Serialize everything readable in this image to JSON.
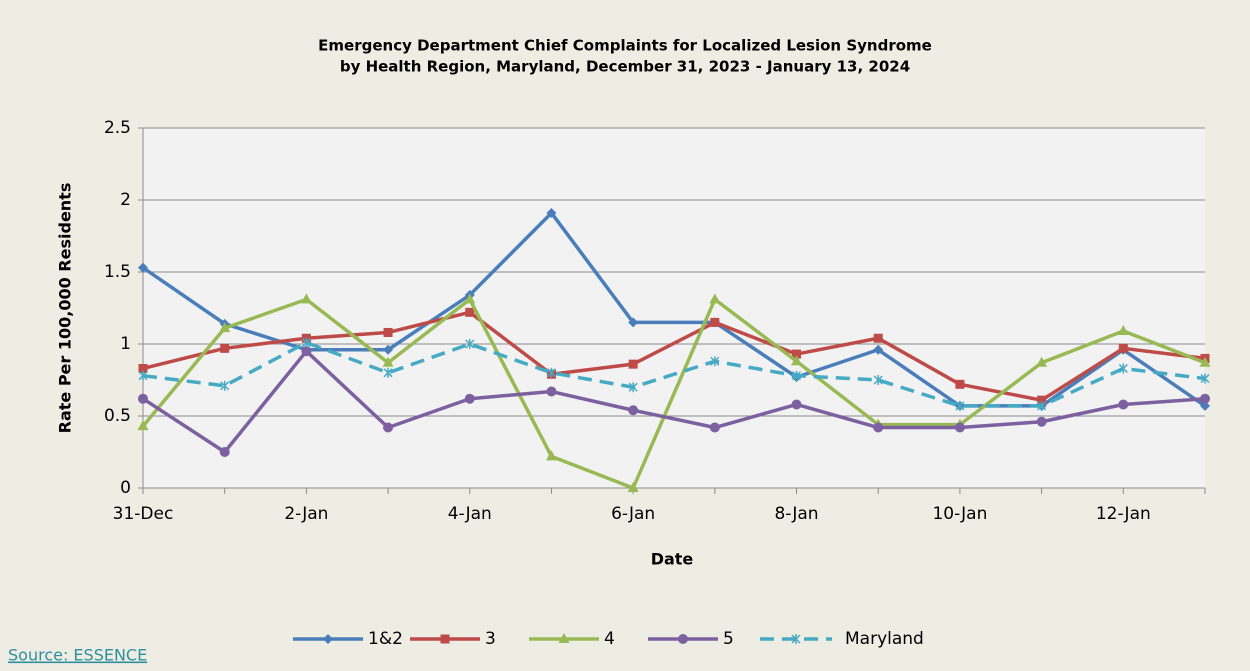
{
  "chart_data": {
    "type": "line",
    "title": "Emergency Department Chief Complaints for Localized Lesion Syndrome",
    "subtitle": "by Health Region, Maryland, December 31, 2023 - January 13, 2024",
    "x_label": "Date",
    "y_label": "Rate Per 100,000 Residents",
    "categories": [
      "31-Dec",
      null,
      "2-Jan",
      null,
      "4-Jan",
      null,
      "6-Jan",
      null,
      "8-Jan",
      null,
      "10-Jan",
      null,
      "12-Jan",
      null
    ],
    "series": [
      {
        "name": "1&2",
        "color": "#4a7ebb",
        "marker": "diamond",
        "values": [
          1.53,
          1.14,
          0.96,
          0.96,
          1.34,
          1.91,
          1.15,
          1.15,
          0.77,
          0.96,
          0.57,
          0.57,
          0.96,
          0.57
        ]
      },
      {
        "name": "3",
        "color": "#be4b48",
        "marker": "square",
        "values": [
          0.83,
          0.97,
          1.04,
          1.08,
          1.22,
          0.79,
          0.86,
          1.15,
          0.93,
          1.04,
          0.72,
          0.61,
          0.97,
          0.9
        ]
      },
      {
        "name": "4",
        "color": "#98b954",
        "marker": "triangle",
        "values": [
          0.43,
          1.11,
          1.31,
          0.87,
          1.31,
          0.22,
          0,
          1.31,
          0.88,
          0.44,
          0.44,
          0.87,
          1.09,
          0.87
        ]
      },
      {
        "name": "5",
        "color": "#7d60a0",
        "marker": "circle",
        "values": [
          0.62,
          0.25,
          0.95,
          0.42,
          0.62,
          0.67,
          0.54,
          0.42,
          0.58,
          0.42,
          0.42,
          0.46,
          0.58,
          0.62
        ]
      },
      {
        "name": "Maryland",
        "color": "#46aac5",
        "marker": "star",
        "dashed": true,
        "values": [
          0.78,
          0.71,
          1.01,
          0.8,
          1.0,
          0.8,
          0.7,
          0.88,
          0.78,
          0.75,
          0.57,
          0.57,
          0.83,
          0.76
        ]
      }
    ],
    "ylim": [
      0,
      2.5
    ],
    "yticks": [
      0,
      0.5,
      1,
      1.5,
      2,
      2.5
    ],
    "grid": true,
    "legend": "bottom",
    "source": "Source: ESSENCE"
  }
}
